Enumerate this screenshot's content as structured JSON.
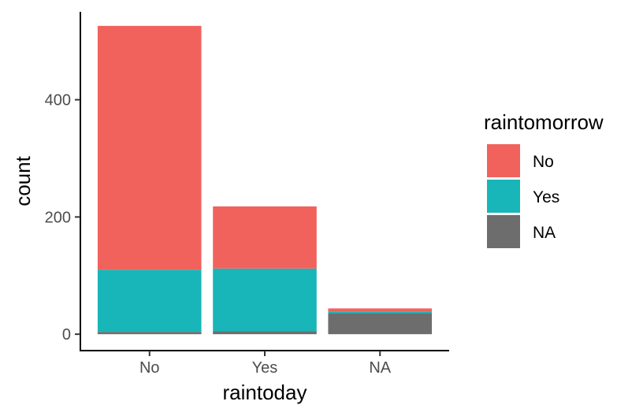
{
  "chart_data": {
    "type": "bar",
    "stacked": true,
    "categories": [
      "No",
      "Yes",
      "NA"
    ],
    "xlabel": "raintoday",
    "ylabel": "count",
    "yticks": [
      0,
      200,
      400
    ],
    "ylim": [
      -28,
      550
    ],
    "grid": false,
    "legend": {
      "title": "raintomorrow",
      "position": "right"
    },
    "series": [
      {
        "name": "NA",
        "color": "#6d6d6d",
        "values": [
          4,
          5,
          36
        ]
      },
      {
        "name": "Yes",
        "color": "#18b6b8",
        "values": [
          106,
          107,
          3
        ]
      },
      {
        "name": "No",
        "color": "#f2625d",
        "values": [
          416,
          106,
          5
        ]
      }
    ],
    "legend_order": [
      "No",
      "Yes",
      "NA"
    ]
  }
}
